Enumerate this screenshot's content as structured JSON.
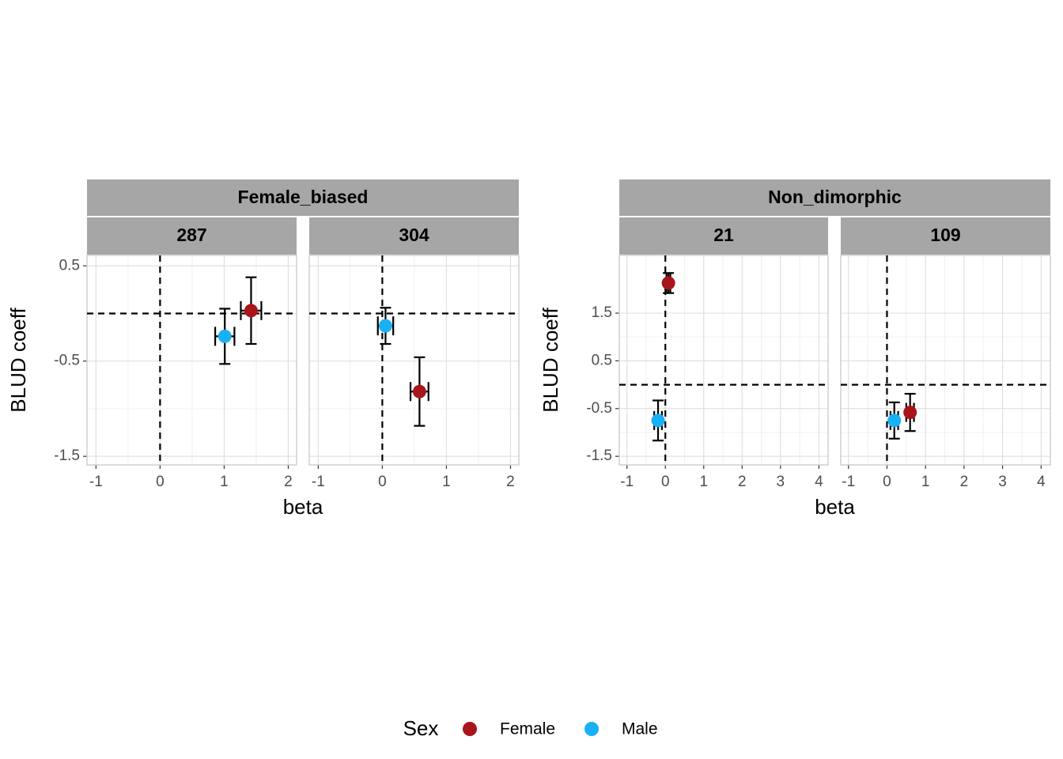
{
  "chart_data": [
    {
      "type": "scatter",
      "group": 0,
      "title": "287",
      "xlim": [
        -1.14,
        2.13
      ],
      "xticks": [
        -1,
        0,
        1,
        2
      ],
      "ylim": [
        -1.59,
        0.61
      ],
      "yticks": [
        -1.5,
        -0.5,
        0.5
      ],
      "hline": 0,
      "vline": 0,
      "series": [
        {
          "name": "Female",
          "color": "#a8151b",
          "x": [
            1.42
          ],
          "values": [
            0.03
          ],
          "xerr": [
            0.16
          ],
          "yerr": [
            0.35
          ]
        },
        {
          "name": "Male",
          "color": "#1ab0f5",
          "x": [
            1.01
          ],
          "values": [
            -0.24
          ],
          "xerr": [
            0.15
          ],
          "yerr": [
            0.29
          ]
        }
      ]
    },
    {
      "type": "scatter",
      "group": 0,
      "title": "304",
      "xlim": [
        -1.14,
        2.13
      ],
      "xticks": [
        -1,
        0,
        1,
        2
      ],
      "ylim": [
        -1.59,
        0.61
      ],
      "yticks": [
        -1.5,
        -0.5,
        0.5
      ],
      "hline": 0,
      "vline": 0,
      "series": [
        {
          "name": "Female",
          "color": "#a8151b",
          "x": [
            0.58
          ],
          "values": [
            -0.82
          ],
          "xerr": [
            0.14
          ],
          "yerr": [
            0.36
          ]
        },
        {
          "name": "Male",
          "color": "#1ab0f5",
          "x": [
            0.05
          ],
          "values": [
            -0.13
          ],
          "xerr": [
            0.12
          ],
          "yerr": [
            0.19
          ]
        }
      ]
    },
    {
      "type": "scatter",
      "group": 1,
      "title": "21",
      "xlim": [
        -1.2,
        4.24
      ],
      "xticks": [
        -1,
        0,
        1,
        2,
        3,
        4
      ],
      "ylim": [
        -1.68,
        2.71
      ],
      "yticks": [
        -1.5,
        -0.5,
        0.5,
        1.5
      ],
      "hline": 0,
      "vline": 0,
      "series": [
        {
          "name": "Female",
          "color": "#a8151b",
          "x": [
            0.08
          ],
          "values": [
            2.13
          ],
          "xerr": [
            0.05
          ],
          "yerr": [
            0.21
          ]
        },
        {
          "name": "Male",
          "color": "#1ab0f5",
          "x": [
            -0.19
          ],
          "values": [
            -0.75
          ],
          "xerr": [
            0.1
          ],
          "yerr": [
            0.42
          ]
        }
      ]
    },
    {
      "type": "scatter",
      "group": 1,
      "title": "109",
      "xlim": [
        -1.2,
        4.24
      ],
      "xticks": [
        -1,
        0,
        1,
        2,
        3,
        4
      ],
      "ylim": [
        -1.68,
        2.71
      ],
      "yticks": [
        -1.5,
        -0.5,
        0.5,
        1.5
      ],
      "hline": 0,
      "vline": 0,
      "series": [
        {
          "name": "Female",
          "color": "#a8151b",
          "x": [
            0.6
          ],
          "values": [
            -0.58
          ],
          "xerr": [
            0.1
          ],
          "yerr": [
            0.39
          ]
        },
        {
          "name": "Male",
          "color": "#1ab0f5",
          "x": [
            0.19
          ],
          "values": [
            -0.75
          ],
          "xerr": [
            0.1
          ],
          "yerr": [
            0.38
          ]
        }
      ]
    }
  ],
  "facet_groups": [
    {
      "label": "Female_biased",
      "xlabel": "beta",
      "ylabel": "BLUD coeff"
    },
    {
      "label": "Non_dimorphic",
      "xlabel": "beta",
      "ylabel": "BLUD coeff"
    }
  ],
  "legend": {
    "title": "Sex"
  }
}
